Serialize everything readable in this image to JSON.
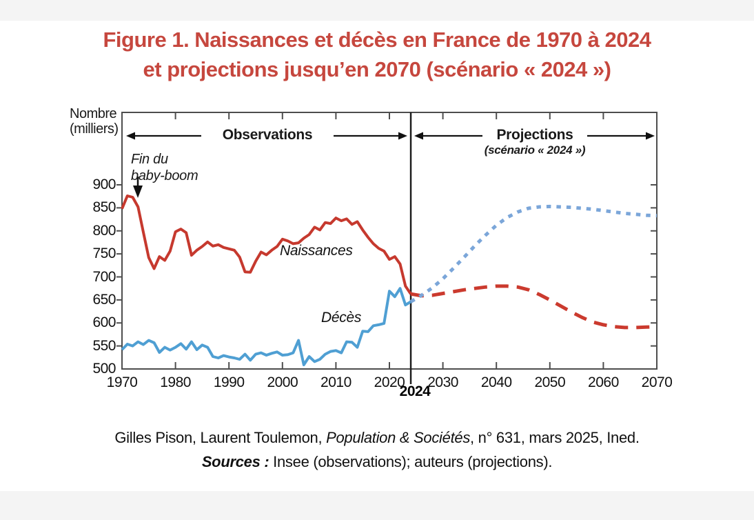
{
  "header": {
    "title_line1": "Figure 1. Naissances et décès en France de 1970 à 2024",
    "title_line2": "et projections jusqu’en 2070 (scénario « 2024 »)",
    "title_color": "#c6473e"
  },
  "chart": {
    "y_axis_title_line1": "Nombre",
    "y_axis_title_line2": "(milliers)",
    "sections": {
      "observations": {
        "label": "Observations"
      },
      "projections": {
        "label": "Projections",
        "subtitle": "(scénario « 2024 »)"
      }
    },
    "annotations": {
      "baby_boom_line1": "Fin du",
      "baby_boom_line2": "baby-boom",
      "naissances": "Naissances",
      "deces": "Décès"
    },
    "x_2024_label": "2024"
  },
  "footer": {
    "credit_prefix": "Gilles Pison, Laurent Toulemon, ",
    "credit_italic": "Population & Sociétés",
    "credit_suffix": ", n° 631, mars 2025, Ined.",
    "sources_label": "Sources :",
    "sources_text": " Insee (observations); auteurs (projections)."
  },
  "chart_data": {
    "type": "line",
    "title": "Figure 1. Naissances et décès en France de 1970 à 2024 et projections jusqu'en 2070 (scénario « 2024 »)",
    "xlabel": "",
    "ylabel": "Nombre (milliers)",
    "grid": false,
    "legend_position": "inline-labels",
    "annotations": [
      "Fin du baby-boom",
      "Naissances",
      "Décès",
      "Observations",
      "Projections (scénario « 2024 »)",
      "2024"
    ],
    "divider_year": 2024,
    "x_axis": {
      "min": 1970,
      "max": 2070,
      "ticks": [
        1970,
        1980,
        1990,
        2000,
        2010,
        2020,
        2030,
        2040,
        2050,
        2060,
        2070
      ]
    },
    "y_axis": {
      "min": 500,
      "max_labeled": 900,
      "step": 50,
      "ticks": [
        900,
        850,
        800,
        750,
        700,
        650,
        600,
        550,
        500
      ]
    },
    "series": [
      {
        "id": "naissances-obs",
        "name": "Naissances (observations)",
        "color": "#c6392e",
        "style": "solid",
        "start_year": 1970,
        "step": 1,
        "values": [
          848,
          876,
          873,
          852,
          797,
          742,
          718,
          744,
          736,
          756,
          798,
          804,
          796,
          747,
          758,
          766,
          776,
          767,
          770,
          764,
          761,
          758,
          743,
          711,
          710,
          734,
          754,
          748,
          758,
          766,
          782,
          778,
          772,
          774,
          784,
          792,
          808,
          802,
          818,
          816,
          828,
          822,
          826,
          814,
          820,
          802,
          786,
          772,
          762,
          756,
          738,
          744,
          728,
          680,
          663
        ]
      },
      {
        "id": "deces-obs",
        "name": "Décès (observations)",
        "color": "#4f9fd3",
        "style": "solid",
        "start_year": 1970,
        "step": 1,
        "values": [
          542,
          554,
          550,
          559,
          553,
          562,
          557,
          536,
          547,
          541,
          547,
          555,
          543,
          559,
          542,
          552,
          547,
          527,
          524,
          529,
          526,
          524,
          521,
          532,
          519,
          532,
          535,
          530,
          534,
          537,
          530,
          531,
          535,
          562,
          509,
          527,
          516,
          521,
          532,
          538,
          540,
          535,
          559,
          558,
          547,
          582,
          581,
          594,
          596,
          599,
          669,
          657,
          675,
          639,
          646
        ]
      },
      {
        "id": "naissances-proj",
        "name": "Naissances (projections, scénario « 2024 »)",
        "color": "#cb3a2e",
        "style": "dashed",
        "start_year": 2024,
        "step": 2,
        "values": [
          663,
          659,
          660,
          664,
          668,
          672,
          675,
          678,
          680,
          680,
          678,
          672,
          662,
          650,
          637,
          624,
          612,
          602,
          596,
          592,
          590,
          590,
          591,
          592
        ]
      },
      {
        "id": "deces-proj",
        "name": "Décès (projections, scénario « 2024 »)",
        "color": "#7ba6d9",
        "style": "dotted",
        "start_year": 2024,
        "step": 2,
        "values": [
          646,
          660,
          676,
          696,
          719,
          743,
          768,
          791,
          812,
          829,
          841,
          849,
          852,
          853,
          852,
          851,
          849,
          847,
          844,
          841,
          838,
          836,
          834,
          833
        ]
      }
    ]
  }
}
